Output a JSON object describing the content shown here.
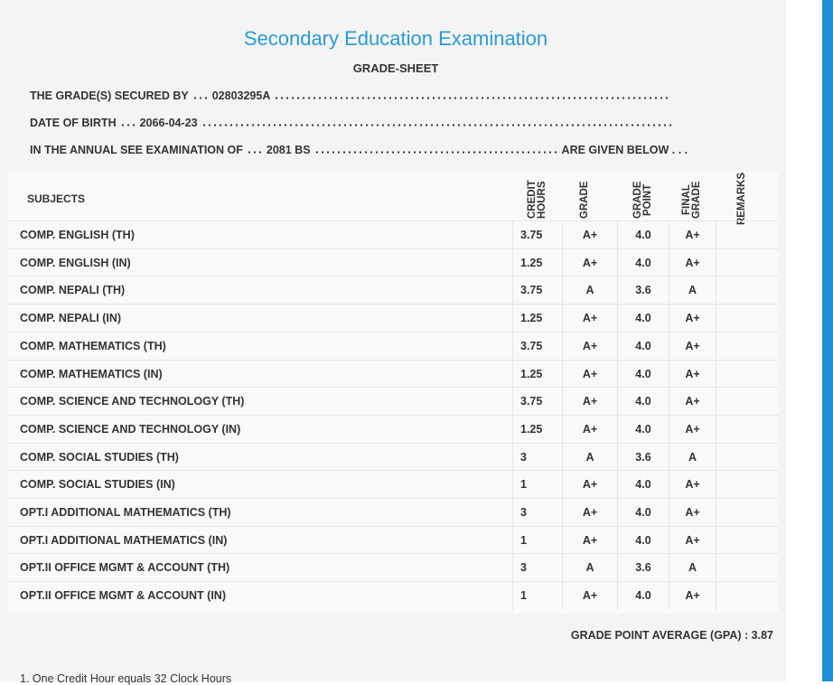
{
  "header": {
    "title": "Secondary Education Examination",
    "subtitle": "GRADE-SHEET"
  },
  "info": [
    {
      "label": "THE GRADE(S) SECURED BY",
      "value": "02803295A"
    },
    {
      "label": "DATE OF BIRTH",
      "value": "2066-04-23"
    },
    {
      "label": "IN THE ANNUAL SEE EXAMINATION OF",
      "value": "2081 BS",
      "suffix": "ARE GIVEN BELOW . . ."
    }
  ],
  "table": {
    "columns": [
      "SUBJECTS",
      "CREDIT HOURS",
      "GRADE",
      "GRADE POINT",
      "FINAL GRADE",
      "REMARKS"
    ],
    "rows": [
      [
        "COMP. ENGLISH (TH)",
        "3.75",
        "A+",
        "4.0",
        "A+"
      ],
      [
        "COMP. ENGLISH (IN)",
        "1.25",
        "A+",
        "4.0",
        "A+"
      ],
      [
        "COMP. NEPALI (TH)",
        "3.75",
        "A",
        "3.6",
        "A"
      ],
      [
        "COMP. NEPALI (IN)",
        "1.25",
        "A+",
        "4.0",
        "A+"
      ],
      [
        "COMP. MATHEMATICS (TH)",
        "3.75",
        "A+",
        "4.0",
        "A+"
      ],
      [
        "COMP. MATHEMATICS (IN)",
        "1.25",
        "A+",
        "4.0",
        "A+"
      ],
      [
        "COMP. SCIENCE AND TECHNOLOGY (TH)",
        "3.75",
        "A+",
        "4.0",
        "A+"
      ],
      [
        "COMP. SCIENCE AND TECHNOLOGY (IN)",
        "1.25",
        "A+",
        "4.0",
        "A+"
      ],
      [
        "COMP. SOCIAL STUDIES (TH)",
        "3",
        "A",
        "3.6",
        "A"
      ],
      [
        "COMP. SOCIAL STUDIES (IN)",
        "1",
        "A+",
        "4.0",
        "A+"
      ],
      [
        "OPT.I ADDITIONAL MATHEMATICS (TH)",
        "3",
        "A+",
        "4.0",
        "A+"
      ],
      [
        "OPT.I ADDITIONAL MATHEMATICS (IN)",
        "1",
        "A+",
        "4.0",
        "A+"
      ],
      [
        "OPT.II OFFICE MGMT & ACCOUNT (TH)",
        "3",
        "A",
        "3.6",
        "A"
      ],
      [
        "OPT.II OFFICE MGMT & ACCOUNT (IN)",
        "1",
        "A+",
        "4.0",
        "A+"
      ]
    ]
  },
  "gpa": {
    "label": "GRADE POINT AVERAGE (GPA) :",
    "value": "3.87"
  },
  "footnote": "1. One Credit Hour equals 32 Clock Hours"
}
